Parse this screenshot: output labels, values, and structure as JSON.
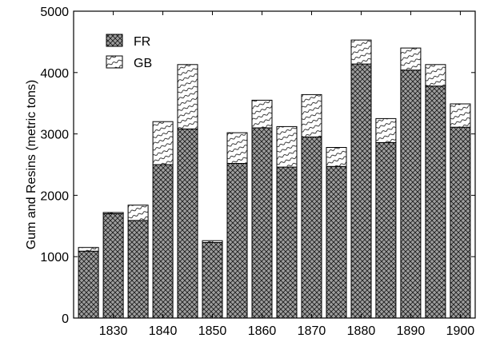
{
  "chart_data": {
    "type": "bar",
    "stacked": true,
    "x": [
      1825,
      1830,
      1835,
      1840,
      1845,
      1850,
      1855,
      1860,
      1865,
      1870,
      1875,
      1880,
      1885,
      1890,
      1895,
      1900
    ],
    "series": [
      {
        "name": "FR",
        "pattern": "crosshatch",
        "fill_color": "#9e9e9e",
        "values": [
          1090,
          1700,
          1590,
          2500,
          3080,
          1230,
          2520,
          3100,
          2460,
          2950,
          2470,
          4140,
          2860,
          4040,
          3780,
          3110
        ]
      },
      {
        "name": "GB",
        "pattern": "diagonal-wave",
        "fill_color": "#ffffff",
        "values": [
          60,
          20,
          250,
          700,
          1050,
          30,
          500,
          450,
          660,
          690,
          310,
          390,
          390,
          360,
          350,
          380
        ]
      }
    ],
    "xlabel": "",
    "ylabel": "Gum and Resins (metric tons)",
    "xlim": [
      1822,
      1903
    ],
    "ylim": [
      0,
      5000
    ],
    "xticks": [
      1830,
      1840,
      1850,
      1860,
      1870,
      1880,
      1890,
      1900
    ],
    "yticks": [
      0,
      1000,
      2000,
      3000,
      4000,
      5000
    ],
    "grid": false,
    "legend_position": "top-left",
    "colors": {
      "axis": "#000000",
      "bar_edge": "#000000"
    }
  }
}
